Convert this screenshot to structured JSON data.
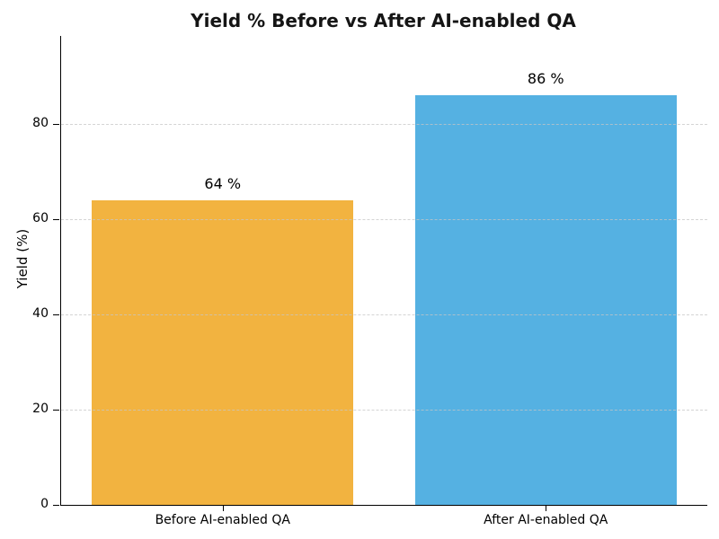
{
  "chart_data": {
    "type": "bar",
    "title": "Yield % Before vs After AI-enabled QA",
    "ylabel": "Yield (%)",
    "xlabel": "",
    "categories": [
      "Before AI-enabled QA",
      "After AI-enabled QA"
    ],
    "values": [
      64,
      86
    ],
    "bar_labels": [
      "64 %",
      "86 %"
    ],
    "bar_colors": [
      "#F2B340",
      "#55B1E2"
    ],
    "yticks": [
      0,
      20,
      40,
      60,
      80
    ],
    "ylim": [
      0,
      98.5
    ],
    "grid": "horizontal-dashed",
    "grid_color": "#c6c6c6",
    "title_color": "#151515",
    "text_color": "#000000",
    "legend": "none"
  }
}
